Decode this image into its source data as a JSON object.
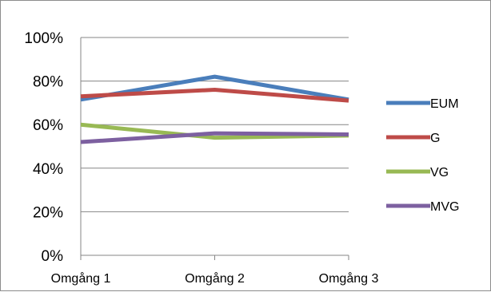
{
  "chart_data": {
    "type": "line",
    "categories": [
      "Omgång 1",
      "Omgång 2",
      "Omgång 3"
    ],
    "ylim": [
      0,
      100
    ],
    "yticks": [
      0,
      20,
      40,
      60,
      80,
      100
    ],
    "ytick_labels": [
      "0%",
      "20%",
      "40%",
      "60%",
      "80%",
      "100%"
    ],
    "grid": true,
    "legend_position": "right",
    "series": [
      {
        "name": "EUM",
        "values": [
          71.5,
          82,
          71.5
        ],
        "color": "#4a7ebb"
      },
      {
        "name": "G",
        "values": [
          73,
          76,
          71
        ],
        "color": "#be4b48"
      },
      {
        "name": "VG",
        "values": [
          60,
          54,
          55
        ],
        "color": "#98b954"
      },
      {
        "name": "MVG",
        "values": [
          52,
          56,
          55.5
        ],
        "color": "#7d60a0"
      }
    ]
  }
}
